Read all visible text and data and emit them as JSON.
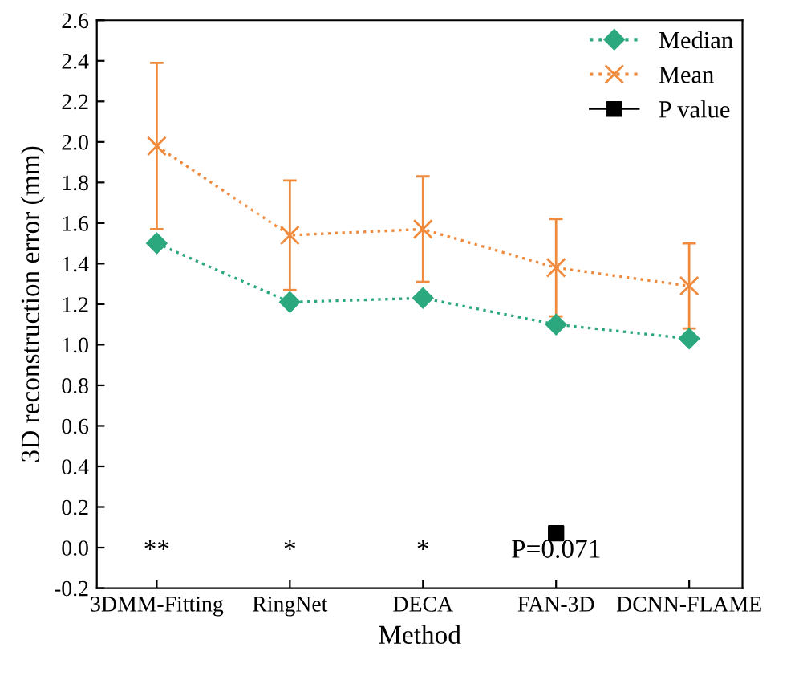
{
  "chart_data": {
    "type": "line",
    "xlabel": "Method",
    "ylabel": "3D reconstruction error (mm)",
    "categories": [
      "3DMM-Fitting",
      "RingNet",
      "DECA",
      "FAN-3D",
      "DCNN-FLAME"
    ],
    "series": [
      {
        "name": "Median",
        "color": "#2ca87f",
        "values": [
          1.5,
          1.21,
          1.23,
          1.1,
          1.03
        ],
        "marker": "diamond",
        "line_style": "dotted"
      },
      {
        "name": "Mean",
        "color": "#f08a3c",
        "values": [
          1.98,
          1.54,
          1.57,
          1.38,
          1.29
        ],
        "errors": [
          [
            1.57,
            2.39
          ],
          [
            1.27,
            1.81
          ],
          [
            1.31,
            1.83
          ],
          [
            1.14,
            1.62
          ],
          [
            1.08,
            1.5
          ]
        ],
        "marker": "cross",
        "line_style": "dotted"
      },
      {
        "name": "P value",
        "type": "scatter",
        "color": "#000000",
        "values": [
          null,
          null,
          null,
          0.071,
          null
        ],
        "marker": "square"
      }
    ],
    "ylim": [
      -0.2,
      2.6
    ],
    "yticks": [
      -0.2,
      {
        "value": 0,
        "label": "0.0"
      },
      0.2,
      0.4,
      0.6,
      0.8,
      {
        "value": 1,
        "label": "1.0"
      },
      1.2,
      1.4,
      1.6,
      1.8,
      {
        "value": 2,
        "label": "2.0"
      },
      2.2,
      2.4,
      2.6
    ],
    "annotations": [
      "**",
      "*",
      "*",
      "P=0.071"
    ],
    "legend": "top right",
    "grid": false
  }
}
